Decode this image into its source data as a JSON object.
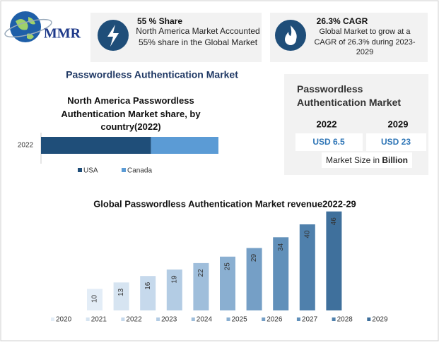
{
  "logo": {
    "text": "MMR"
  },
  "cards": [
    {
      "heading": "55 % Share",
      "body": "North America Market Accounted 55% share in the Global Market"
    },
    {
      "heading": "26.3% CAGR",
      "body": "Global Market to grow at a CAGR of 26.3% during 2023-2029"
    }
  ],
  "section_title": "Passwordless Authentication Market",
  "market_size": {
    "title": "Passwordless Authentication Market",
    "years": [
      "2022",
      "2029"
    ],
    "amounts": [
      "USD 6.5",
      "USD 23"
    ],
    "caption": "Market Size in ",
    "caption_bold": "Billion"
  },
  "chart_data": [
    {
      "type": "stacked-hbar",
      "title": "North America Passwordless Authentication Market share, by country(2022)",
      "categories": [
        "2022"
      ],
      "series": [
        {
          "name": "USA",
          "color": "#1f4e79",
          "values": [
            62
          ]
        },
        {
          "name": "Canada",
          "color": "#5b9bd5",
          "values": [
            38
          ]
        }
      ]
    },
    {
      "type": "bar",
      "title": "Global Passwordless Authentication Market revenue2022-29",
      "categories": [
        "2020",
        "2021",
        "2022",
        "2023",
        "2024",
        "2025",
        "2026",
        "2027",
        "2028",
        "2029"
      ],
      "values": [
        10,
        13,
        16,
        19,
        22,
        25,
        29,
        34,
        40,
        46
      ],
      "colors": [
        "#e3edf7",
        "#d6e4f1",
        "#c6d9ec",
        "#b3cce4",
        "#9fbedb",
        "#8aafd1",
        "#759fc6",
        "#6190ba",
        "#4f80ac",
        "#3f709c"
      ]
    }
  ]
}
